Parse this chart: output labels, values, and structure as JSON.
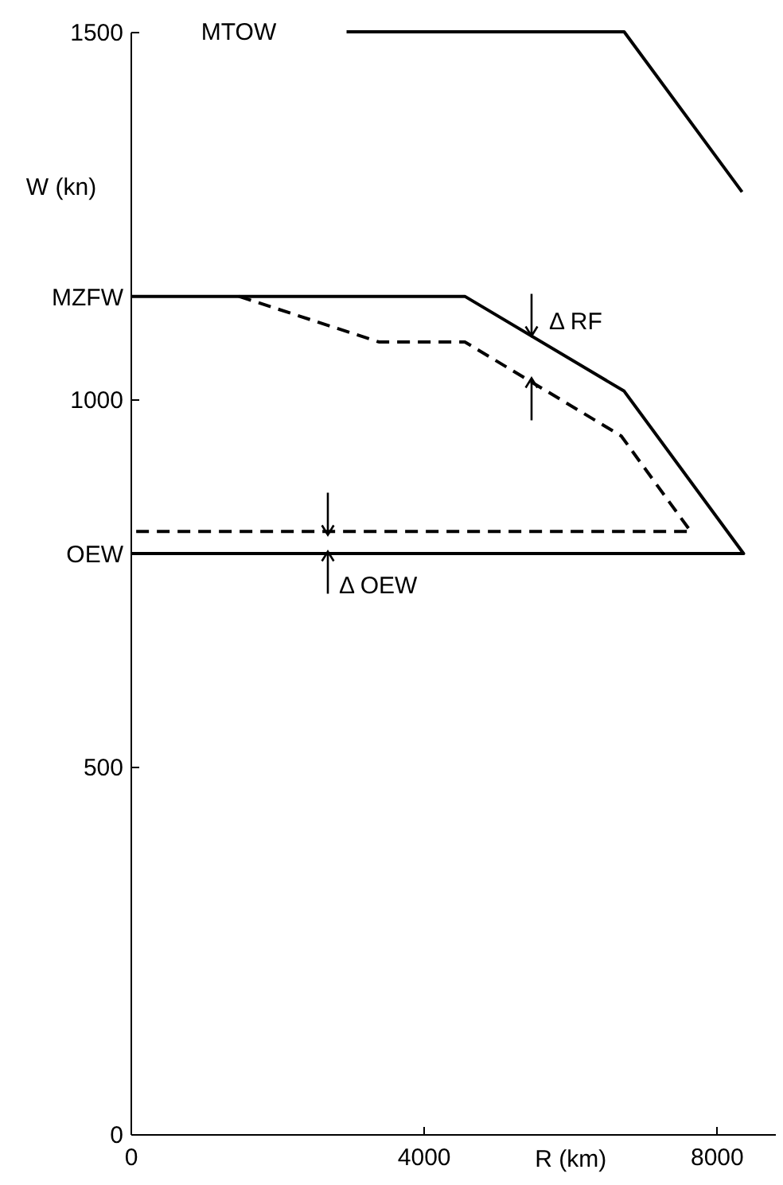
{
  "chart_data": {
    "type": "line",
    "xlabel": "R (km)",
    "ylabel": "W (kn)",
    "xlim": [
      0,
      8800
    ],
    "xticks": [
      0,
      4000,
      8000
    ],
    "ylim": [
      0,
      1500
    ],
    "yticks": [
      0,
      500,
      {
        "value": 790,
        "label": "OEW"
      },
      1000,
      {
        "value": 1140,
        "label": "MZFW"
      },
      1500
    ],
    "grid": false,
    "series": [
      {
        "color": "#000000",
        "line_style": "solid",
        "x": [
          2950,
          6740,
          8350
        ],
        "values": [
          1500,
          1500,
          1282
        ]
      },
      {
        "color": "#000000",
        "line_style": "solid",
        "x": [
          0,
          4565,
          6740,
          8370,
          0
        ],
        "values": [
          1140,
          1140,
          1011,
          790,
          790
        ]
      },
      {
        "color": "#000000",
        "line_style": "dashed",
        "x": [
          1480,
          3390,
          4565,
          6700,
          7650,
          0
        ],
        "values": [
          1140,
          1078,
          1078,
          950,
          820,
          820
        ]
      }
    ],
    "annotations": [
      "MTOW",
      "Δ RF",
      "Δ OEW"
    ]
  }
}
